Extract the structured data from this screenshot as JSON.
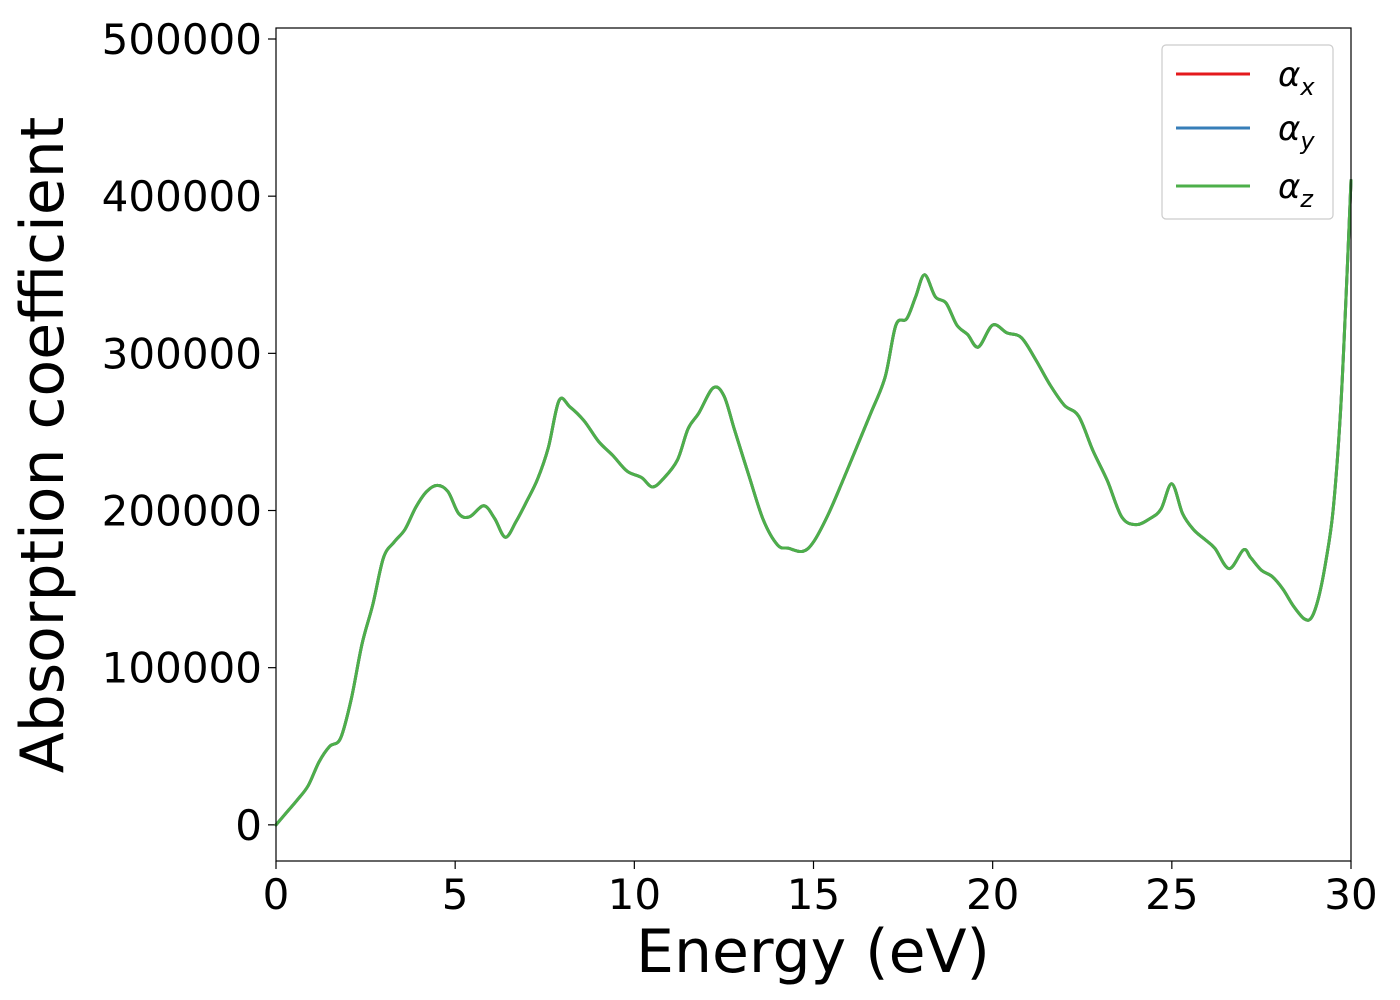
{
  "chart_data": {
    "type": "line",
    "xlabel": "Energy (eV)",
    "ylabel": "Absorption coefficient",
    "xlim": [
      0,
      30
    ],
    "ylim": [
      -23000,
      507000
    ],
    "xticks": [
      0,
      5,
      10,
      15,
      20,
      25,
      30
    ],
    "xtick_labels": [
      "0",
      "5",
      "10",
      "15",
      "20",
      "25",
      "30"
    ],
    "yticks": [
      0,
      100000,
      200000,
      300000,
      400000,
      500000
    ],
    "ytick_labels": [
      "0",
      "100000",
      "200000",
      "300000",
      "400000",
      "500000"
    ],
    "grid": false,
    "legend_position": "top-right",
    "series": [
      {
        "name": "α",
        "subscript": "x",
        "color": "#e41a1c"
      },
      {
        "name": "α",
        "subscript": "y",
        "color": "#377eb8"
      },
      {
        "name": "α",
        "subscript": "z",
        "color": "#4daf4a"
      }
    ],
    "x": [
      0,
      0.3,
      0.6,
      0.9,
      1.2,
      1.5,
      1.8,
      2.1,
      2.4,
      2.7,
      3.0,
      3.3,
      3.6,
      3.9,
      4.2,
      4.5,
      4.8,
      5.1,
      5.4,
      5.8,
      6.1,
      6.4,
      6.7,
      7.0,
      7.3,
      7.6,
      7.9,
      8.2,
      8.6,
      9.0,
      9.4,
      9.8,
      10.2,
      10.5,
      10.8,
      11.2,
      11.5,
      11.8,
      12.2,
      12.5,
      12.8,
      13.2,
      13.6,
      14.0,
      14.3,
      14.7,
      15.0,
      15.4,
      15.8,
      16.2,
      16.6,
      17.0,
      17.3,
      17.6,
      17.85,
      18.1,
      18.4,
      18.7,
      19.0,
      19.3,
      19.6,
      20.0,
      20.4,
      20.8,
      21.2,
      21.6,
      22.0,
      22.4,
      22.8,
      23.2,
      23.6,
      24.0,
      24.4,
      24.7,
      25.0,
      25.3,
      25.6,
      25.9,
      26.2,
      26.6,
      27.0,
      27.2,
      27.5,
      27.8,
      28.1,
      28.4,
      28.7,
      28.9,
      29.1,
      29.3,
      29.5,
      29.7,
      29.85,
      30.0
    ],
    "y": [
      0,
      8000,
      16000,
      25000,
      40000,
      50000,
      55000,
      80000,
      115000,
      140000,
      170000,
      180000,
      188000,
      202000,
      212000,
      216000,
      212000,
      198000,
      196000,
      203000,
      195000,
      183000,
      193000,
      206000,
      220000,
      240000,
      270000,
      266000,
      257000,
      244000,
      235000,
      225000,
      221000,
      215000,
      220000,
      232000,
      252000,
      262000,
      278000,
      273000,
      251000,
      222000,
      194000,
      178000,
      176000,
      174000,
      180000,
      197000,
      218000,
      240000,
      262000,
      285000,
      318000,
      322000,
      336000,
      350000,
      336000,
      332000,
      318000,
      312000,
      304000,
      318000,
      313000,
      310000,
      296000,
      280000,
      267000,
      260000,
      238000,
      219000,
      196000,
      191000,
      195000,
      201000,
      217000,
      198000,
      188000,
      182000,
      176000,
      163000,
      175000,
      170000,
      162000,
      158000,
      150000,
      139000,
      131000,
      132000,
      145000,
      168000,
      200000,
      260000,
      330000,
      410000
    ]
  }
}
